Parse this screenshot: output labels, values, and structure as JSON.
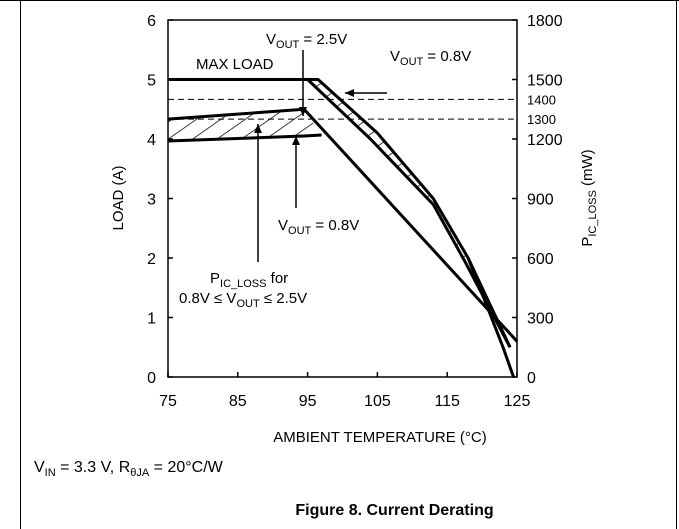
{
  "caption": "Figure 8. Current Derating",
  "conditions": {
    "vin_sym": "V",
    "vin_sub": "IN",
    "vin_rest": " = 3.3 V, R",
    "r_sub": "θJA",
    "r_rest": " = 20°C/W"
  },
  "chart_data": {
    "type": "line",
    "xlabel": "AMBIENT TEMPERATURE (°C)",
    "ylabel": "LOAD (A)",
    "y2label": "P_IC_LOSS (mW)",
    "xlim": [
      75,
      125
    ],
    "ylim": [
      0,
      6
    ],
    "y2lim": [
      0,
      1800
    ],
    "x_ticks": [
      "75",
      "85",
      "95",
      "105",
      "115",
      "125"
    ],
    "y_ticks": [
      "0",
      "1",
      "2",
      "3",
      "4",
      "5",
      "6"
    ],
    "y2_ticks": [
      "0",
      "300",
      "600",
      "900",
      "1200",
      "1500",
      "1800"
    ],
    "y2_extra_ticks": [
      "1300",
      "1400"
    ],
    "grid": false,
    "series": [
      {
        "name": "VOUT = 2.5V load",
        "x": [
          75,
          96.5,
          105,
          113,
          118,
          124
        ],
        "y": [
          5.0,
          5.0,
          4.1,
          3.0,
          2.0,
          0.5
        ]
      },
      {
        "name": "VOUT = 0.8V load",
        "x": [
          75,
          95,
          104,
          113,
          117.5,
          124
        ],
        "y": [
          5.0,
          5.0,
          4.0,
          2.9,
          1.95,
          0.5
        ]
      },
      {
        "name": "PIC_LOSS VOUT = 2.5V",
        "x": [
          75,
          94.5,
          125
        ],
        "y": [
          1300,
          1350,
          180
        ]
      },
      {
        "name": "PIC_LOSS VOUT = 0.8V",
        "x": [
          75,
          94.5,
          97
        ],
        "y": [
          1190,
          1215,
          1220
        ]
      }
    ],
    "dashed_levels_mw": [
      1300,
      1400
    ],
    "annotations": {
      "max_load": "MAX LOAD",
      "vout_25_top": {
        "sym": "V",
        "sub": "OUT",
        "rest": " = 2.5V"
      },
      "vout_08_top": {
        "sym": "V",
        "sub": "OUT",
        "rest": " = 0.8V"
      },
      "vout_08_mid": {
        "sym": "V",
        "sub": "OUT",
        "rest": " = 0.8V"
      },
      "pic_loss_line1": {
        "sym": "P",
        "sub": "IC_LOSS",
        "rest": " for"
      },
      "pic_loss_line2": "0.8V ≤ V",
      "pic_loss_line2_sub": "OUT",
      "pic_loss_line2_rest": " ≤ 2.5V"
    }
  }
}
